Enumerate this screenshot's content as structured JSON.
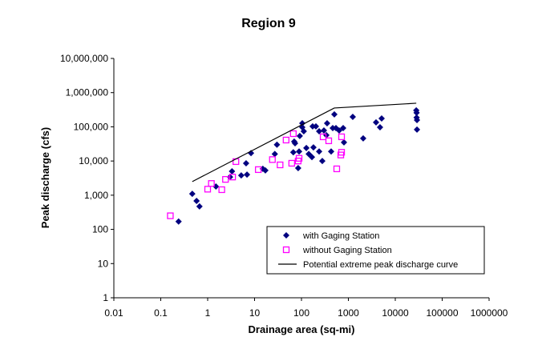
{
  "chart_data": {
    "type": "scatter",
    "title": "Region 9",
    "xlabel": "Drainage area (sq-mi)",
    "ylabel": "Peak discharge (cfs)",
    "xscale": "log",
    "yscale": "log",
    "xlim": [
      0.01,
      1000000
    ],
    "ylim": [
      1,
      10000000
    ],
    "x_ticks": [
      "0.01",
      "0.1",
      "1",
      "10",
      "100",
      "1000",
      "10000",
      "100000",
      "1000000"
    ],
    "y_ticks": [
      "1",
      "10",
      "100",
      "1,000",
      "10,000",
      "100,000",
      "1,000,000",
      "10,000,000"
    ],
    "grid": false,
    "legend_position": "bottom-right",
    "series": [
      {
        "name": "with Gaging Station",
        "marker": "diamond",
        "color": "#000080",
        "points": [
          [
            0.47,
            1100
          ],
          [
            0.58,
            680
          ],
          [
            0.67,
            470
          ],
          [
            0.24,
            170
          ],
          [
            1.5,
            1800
          ],
          [
            3.3,
            5000
          ],
          [
            3.0,
            3400
          ],
          [
            5.2,
            3800
          ],
          [
            6.9,
            4000
          ],
          [
            6.6,
            8600
          ],
          [
            8.4,
            17000
          ],
          [
            15,
            5900
          ],
          [
            17,
            5300
          ],
          [
            27,
            16000
          ],
          [
            30,
            30000
          ],
          [
            67,
            18000
          ],
          [
            70,
            37000
          ],
          [
            73,
            33000
          ],
          [
            89,
            19000
          ],
          [
            85,
            6200
          ],
          [
            92,
            54000
          ],
          [
            104,
            127000
          ],
          [
            104,
            97000
          ],
          [
            112,
            74000
          ],
          [
            127,
            24000
          ],
          [
            143,
            16000
          ],
          [
            167,
            13000
          ],
          [
            180,
            25000
          ],
          [
            173,
            103000
          ],
          [
            203,
            103000
          ],
          [
            238,
            74000
          ],
          [
            238,
            19000
          ],
          [
            278,
            10000
          ],
          [
            301,
            78000
          ],
          [
            339,
            57000
          ],
          [
            352,
            127000
          ],
          [
            429,
            19000
          ],
          [
            502,
            231000
          ],
          [
            464,
            92000
          ],
          [
            543,
            92000
          ],
          [
            635,
            78000
          ],
          [
            774,
            92000
          ],
          [
            805,
            35000
          ],
          [
            1240,
            196000
          ],
          [
            3890,
            135000
          ],
          [
            5120,
            176000
          ],
          [
            4730,
            97000
          ],
          [
            2070,
            46000
          ],
          [
            28000,
            302000
          ],
          [
            28500,
            257000
          ],
          [
            28500,
            186000
          ],
          [
            29000,
            158000
          ],
          [
            29000,
            83000
          ]
        ]
      },
      {
        "name": "without Gaging Station",
        "marker": "square-open",
        "color": "#FF00FF",
        "points": [
          [
            0.16,
            250
          ],
          [
            1.0,
            1500
          ],
          [
            1.2,
            2200
          ],
          [
            2.0,
            1450
          ],
          [
            2.4,
            2900
          ],
          [
            3.4,
            3400
          ],
          [
            4.0,
            9600
          ],
          [
            12,
            5600
          ],
          [
            24,
            11000
          ],
          [
            35,
            7700
          ],
          [
            47,
            41000
          ],
          [
            62,
            8600
          ],
          [
            67,
            63000
          ],
          [
            85,
            10000
          ],
          [
            89,
            12000
          ],
          [
            290,
            51000
          ],
          [
            381,
            39000
          ],
          [
            716,
            51000
          ],
          [
            716,
            18000
          ],
          [
            689,
            15000
          ],
          [
            565,
            5900
          ]
        ]
      },
      {
        "name": "Potential extreme peak discharge curve",
        "marker": "line",
        "color": "#000000",
        "points": [
          [
            0.47,
            2500
          ],
          [
            500,
            355000
          ],
          [
            28000,
            490000
          ]
        ]
      }
    ]
  }
}
